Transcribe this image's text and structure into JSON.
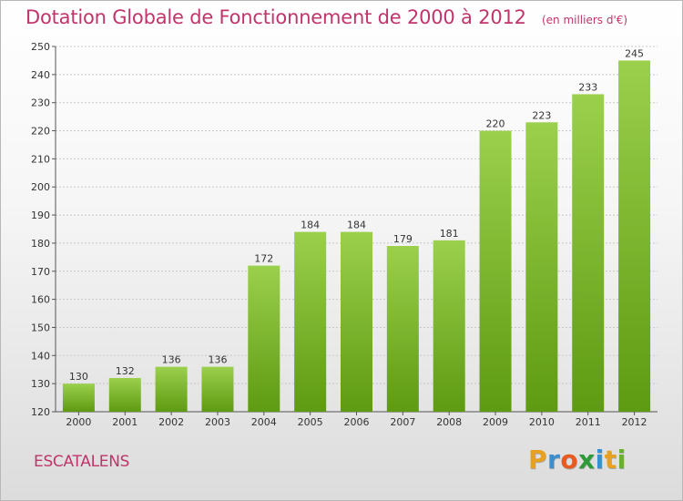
{
  "header": {
    "title": "Dotation Globale de Fonctionnement de 2000 à 2012",
    "unit": "(en milliers d'€)"
  },
  "footer": {
    "commune": "ESCATALENS",
    "logo_letters": [
      "P",
      "r",
      "o",
      "x",
      "i",
      "t",
      "i"
    ],
    "logo_colors": [
      "#e8a020",
      "#3a8fd0",
      "#e85a20",
      "#2e9a3a",
      "#3a8fd0",
      "#e8a020",
      "#6ab030"
    ]
  },
  "colors": {
    "bar_top": "#9bd04c",
    "bar_bottom": "#5e9a12",
    "title": "#c0356b",
    "grid": "#c8c8c8"
  },
  "chart_data": {
    "type": "bar",
    "title": "Dotation Globale de Fonctionnement de 2000 à 2012",
    "subtitle": "(en milliers d'€)",
    "xlabel": "",
    "ylabel": "",
    "categories": [
      "2000",
      "2001",
      "2002",
      "2003",
      "2004",
      "2005",
      "2006",
      "2007",
      "2008",
      "2009",
      "2010",
      "2011",
      "2012"
    ],
    "values": [
      130,
      132,
      136,
      136,
      172,
      184,
      184,
      179,
      181,
      220,
      223,
      233,
      245
    ],
    "ylim": [
      120,
      250
    ],
    "yticks": [
      120,
      130,
      140,
      150,
      160,
      170,
      180,
      190,
      200,
      210,
      220,
      230,
      240,
      250
    ],
    "grid": true,
    "data_labels": true
  }
}
